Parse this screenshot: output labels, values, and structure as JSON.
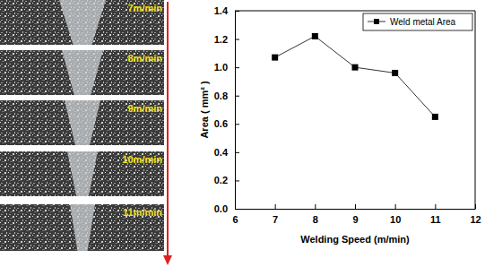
{
  "chart_data": {
    "type": "line",
    "x_label": "Welding Speed (m/min)",
    "y_label": "Area ( mm² )",
    "annotations": [
      "7m/min",
      "8m/min",
      "9m/min",
      "10m/min",
      "11m/min"
    ],
    "x": [
      7,
      8,
      9,
      10,
      11
    ],
    "series": [
      {
        "name": "Weld metal Area",
        "color": "#000000",
        "marker": "square",
        "line_style": "solid",
        "values": [
          1.07,
          1.22,
          1.0,
          0.96,
          0.65
        ]
      }
    ],
    "xlim": [
      6,
      12
    ],
    "xticks": [
      6,
      7,
      8,
      9,
      10,
      11,
      12
    ],
    "ylim": [
      0,
      1.4
    ],
    "yticks": [
      {
        "value": 0,
        "label": "0.0"
      },
      0.2,
      0.4,
      0.6,
      0.8,
      {
        "value": 1,
        "label": "1.0"
      },
      1.2,
      1.4
    ],
    "legend": "top-right",
    "grid": false
  }
}
